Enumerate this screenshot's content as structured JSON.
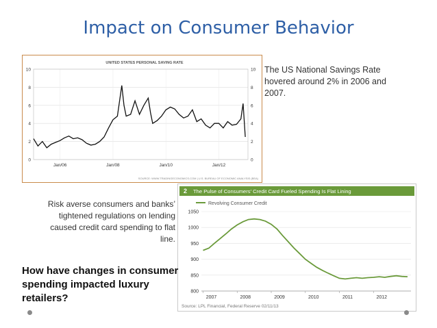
{
  "slide": {
    "title": "Impact on Consumer Behavior",
    "note_savings": "The US National Savings Rate hovered around 2% in 2006 and 2007.",
    "note_credit": "Risk averse consumers and banks’ tightened regulations on lending caused credit card spending to flat line.",
    "question": "How have changes in consumer spending impacted luxury retailers?"
  },
  "colors": {
    "title": "#2e5fa6",
    "savings_line": "#111111",
    "credit_line": "#6a9a3a",
    "credit_header_bg": "#6a9a3a",
    "chart1_border": "#c98a4a"
  },
  "chart_data": [
    {
      "type": "line",
      "title": "UNITED STATES PERSONAL SAVING RATE",
      "source": "SOURCE: WWW.TRADINGECONOMICS.COM  |  U.S. BUREAU OF ECONOMIC ANALYSIS (BEA)",
      "x_ticks": [
        "Jan/06",
        "Jan/08",
        "Jan/10",
        "Jan/12"
      ],
      "y_ticks_left": [
        "10",
        "8",
        "6",
        "4",
        "2",
        "0"
      ],
      "y_ticks_right": [
        "10",
        "8",
        "6",
        "4",
        "2",
        "0"
      ],
      "ylim": [
        0,
        10
      ],
      "grid": true,
      "series": [
        {
          "x": [
            "2005-01",
            "2005-03",
            "2005-05",
            "2005-07",
            "2005-09",
            "2005-11",
            "2006-01",
            "2006-03",
            "2006-05",
            "2006-07",
            "2006-09",
            "2006-11",
            "2007-01",
            "2007-03",
            "2007-05",
            "2007-07",
            "2007-09",
            "2007-11",
            "2008-01",
            "2008-03",
            "2008-05",
            "2008-06",
            "2008-07",
            "2008-09",
            "2008-11",
            "2009-01",
            "2009-03",
            "2009-05",
            "2009-06",
            "2009-07",
            "2009-09",
            "2009-11",
            "2010-01",
            "2010-03",
            "2010-05",
            "2010-07",
            "2010-09",
            "2010-11",
            "2011-01",
            "2011-03",
            "2011-05",
            "2011-07",
            "2011-09",
            "2011-11",
            "2012-01",
            "2012-03",
            "2012-05",
            "2012-07",
            "2012-09",
            "2012-11",
            "2012-12",
            "2013-01"
          ],
          "values": [
            2.3,
            1.5,
            2.0,
            1.3,
            1.7,
            1.9,
            2.1,
            2.4,
            2.6,
            2.3,
            2.4,
            2.2,
            1.8,
            1.6,
            1.7,
            2.0,
            2.5,
            3.5,
            4.4,
            4.8,
            8.2,
            6.0,
            4.8,
            5.0,
            6.5,
            5.0,
            6.0,
            6.8,
            5.2,
            4.0,
            4.3,
            4.8,
            5.5,
            5.8,
            5.6,
            5.0,
            4.6,
            4.8,
            5.5,
            4.2,
            4.5,
            3.8,
            3.5,
            4.0,
            4.0,
            3.5,
            4.2,
            3.8,
            3.9,
            4.5,
            6.2,
            2.5
          ]
        }
      ]
    },
    {
      "type": "line",
      "label_number": "2",
      "title": "The Pulse of Consumers' Credit Card Fueled Spending Is Flat Lining",
      "source": "Source: LPL Financial, Federal Reserve  02/11/13",
      "x_ticks": [
        "2007",
        "2008",
        "2009",
        "2010",
        "2011",
        "2012"
      ],
      "y_ticks": [
        "1050",
        "1000",
        "950",
        "900",
        "850",
        "800"
      ],
      "ylim": [
        800,
        1050
      ],
      "series": [
        {
          "name": "Revolving Consumer Credit",
          "x": [
            2007.0,
            2007.17,
            2007.33,
            2007.5,
            2007.67,
            2007.83,
            2008.0,
            2008.17,
            2008.33,
            2008.5,
            2008.67,
            2008.83,
            2009.0,
            2009.17,
            2009.33,
            2009.5,
            2009.67,
            2009.83,
            2010.0,
            2010.17,
            2010.33,
            2010.5,
            2010.67,
            2010.83,
            2011.0,
            2011.17,
            2011.33,
            2011.5,
            2011.67,
            2011.83,
            2012.0,
            2012.17,
            2012.33,
            2012.5,
            2012.67,
            2012.83,
            2013.0
          ],
          "values": [
            928,
            935,
            950,
            965,
            980,
            995,
            1008,
            1018,
            1025,
            1027,
            1025,
            1020,
            1010,
            995,
            975,
            955,
            935,
            918,
            900,
            887,
            875,
            865,
            856,
            848,
            840,
            838,
            840,
            842,
            840,
            842,
            843,
            845,
            843,
            846,
            848,
            846,
            845
          ]
        }
      ]
    }
  ]
}
